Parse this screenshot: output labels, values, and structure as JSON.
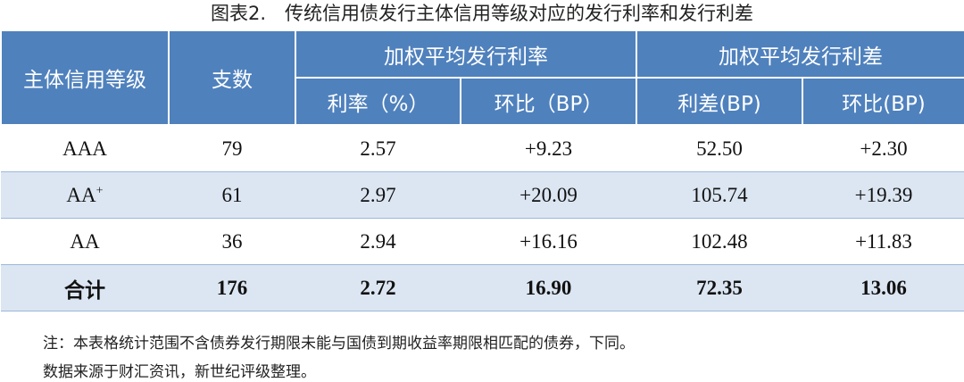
{
  "title": "图表2.　传统信用债发行主体信用等级对应的发行利率和发行利差",
  "table": {
    "header": {
      "rating": "主体信用等级",
      "count": "支数",
      "group_rate": "加权平均发行利率",
      "group_spread": "加权平均发行利差",
      "sub": [
        "利率（%）",
        "环比（BP）",
        "利差(BP)",
        "环比(BP)"
      ]
    },
    "rows": [
      [
        {
          "text": "AAA"
        },
        "79",
        "2.57",
        "+9.23",
        "52.50",
        "+2.30"
      ],
      [
        {
          "text": "AA",
          "sup": "+"
        },
        "61",
        "2.97",
        "+20.09",
        "105.74",
        "+19.39"
      ],
      [
        {
          "text": "AA"
        },
        "36",
        "2.94",
        "+16.16",
        "102.48",
        "+11.83"
      ],
      [
        {
          "text": "合计"
        },
        "176",
        "2.72",
        "16.90",
        "72.35",
        "13.06"
      ]
    ]
  },
  "notes": [
    "注：本表格统计范围不含债券发行期限未能与国债到期收益率期限相匹配的债券，下同。",
    "数据来源于财汇资讯，新世纪评级整理。"
  ]
}
